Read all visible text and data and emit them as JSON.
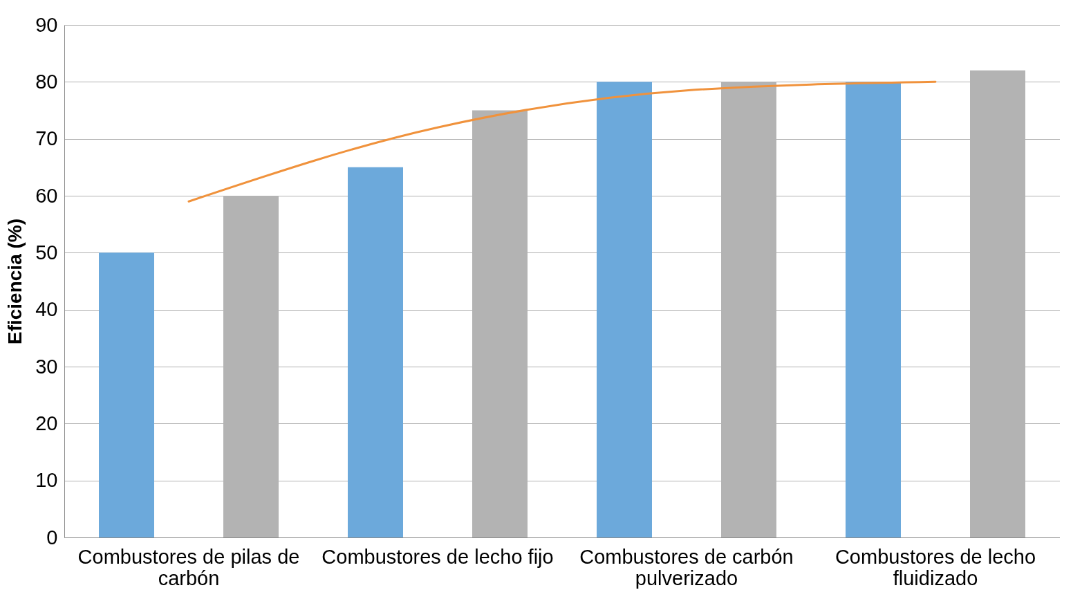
{
  "chart_data": {
    "type": "bar",
    "ylabel": "Eficiencia (%)",
    "categories": [
      "Combustores de pilas de carbón",
      "Combustores de lecho fijo",
      "Combustores de carbón pulverizado",
      "Combustores de lecho fluidizado"
    ],
    "series": [
      {
        "color": "#6ca9db",
        "values": [
          50,
          65,
          80,
          80
        ]
      },
      {
        "color": "#b3b3b3",
        "values": [
          60,
          75,
          80,
          82
        ]
      },
      {
        "type": "line",
        "color": "#f0923c",
        "values": [
          59,
          72,
          78.5,
          80
        ]
      }
    ],
    "ylim": [
      0,
      90
    ],
    "yticks": [
      0,
      10,
      20,
      30,
      40,
      50,
      60,
      70,
      80,
      90
    ],
    "grid": "y",
    "legend": false
  }
}
